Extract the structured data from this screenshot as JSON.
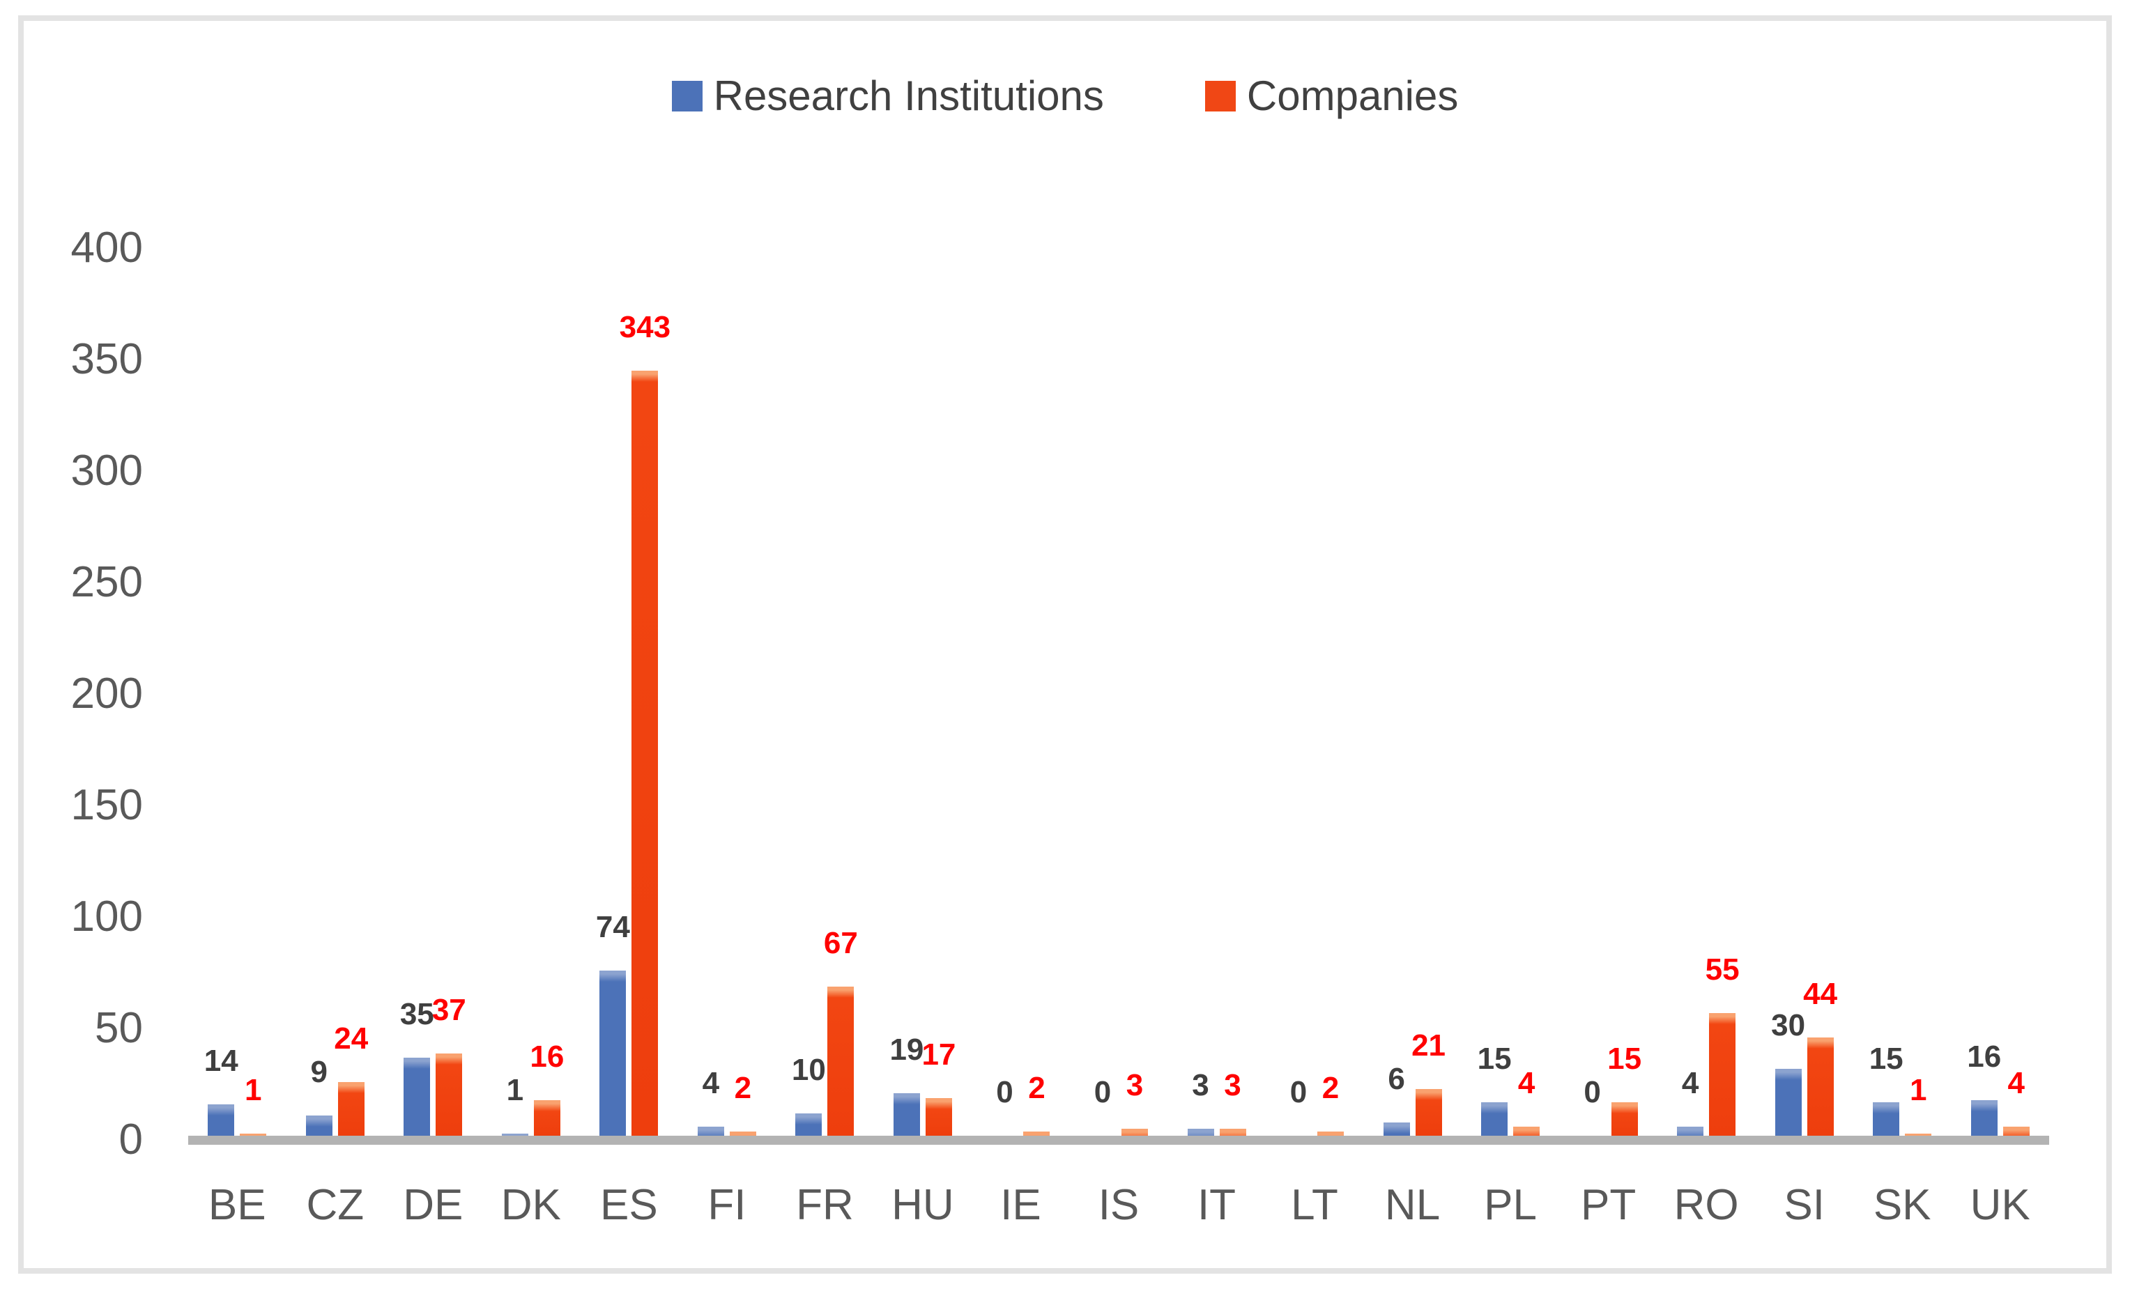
{
  "legend": {
    "items": [
      {
        "label": "Research Institutions"
      },
      {
        "label": "Companies"
      }
    ]
  },
  "chart_data": {
    "type": "bar",
    "title": "",
    "xlabel": "",
    "ylabel": "",
    "categories": [
      "BE",
      "CZ",
      "DE",
      "DK",
      "ES",
      "FI",
      "FR",
      "HU",
      "IE",
      "IS",
      "IT",
      "LT",
      "NL",
      "PL",
      "PT",
      "RO",
      "SI",
      "SK",
      "UK"
    ],
    "series": [
      {
        "name": "Research Institutions",
        "color": "#4c72b8",
        "label_color": "#3f3f3f",
        "values": [
          14,
          9,
          35,
          1,
          74,
          4,
          10,
          19,
          0,
          0,
          3,
          0,
          6,
          15,
          0,
          4,
          30,
          15,
          16
        ]
      },
      {
        "name": "Companies",
        "color": "#f04715",
        "label_color": "#ff0000",
        "values": [
          1,
          24,
          37,
          16,
          343,
          2,
          67,
          17,
          2,
          3,
          3,
          2,
          21,
          4,
          15,
          55,
          44,
          1,
          4
        ]
      }
    ],
    "ylim": [
      0,
      400
    ],
    "ytick_step": 50,
    "yticks": [
      0,
      50,
      100,
      150,
      200,
      250,
      300,
      350,
      400
    ],
    "grid": false,
    "legend_position": "top-center",
    "axis_text_color": "#595959",
    "baseline_color": "#b3b3b3",
    "data_labels_shown": true
  }
}
